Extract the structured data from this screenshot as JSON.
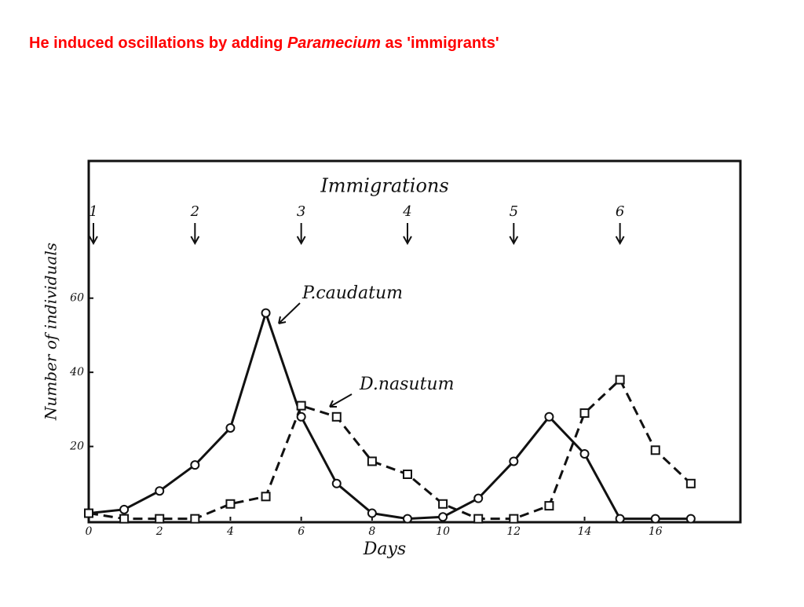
{
  "slide": {
    "title_parts": [
      "He induced oscillations by adding ",
      "Paramecium",
      " as 'immigrants'"
    ]
  },
  "chart_data": {
    "type": "line",
    "x_label": "Days",
    "y_label": "Number of individuals",
    "x": [
      0,
      1,
      2,
      3,
      4,
      5,
      6,
      7,
      8,
      9,
      10,
      11,
      12,
      13,
      14,
      15,
      16,
      17
    ],
    "series": [
      {
        "name": "P.caudatum",
        "color": "#111111",
        "style": "solid",
        "marker": "circle",
        "values": [
          2,
          3,
          8,
          15,
          25,
          56,
          28,
          10,
          2,
          0.5,
          1,
          6,
          16,
          28,
          18,
          0.5,
          0.5,
          0.5
        ]
      },
      {
        "name": "D.nasutum",
        "color": "#111111",
        "style": "dashed",
        "marker": "square",
        "values": [
          2,
          0.5,
          0.5,
          0.5,
          4.5,
          6.5,
          31,
          28,
          16,
          12.5,
          4.5,
          0.5,
          0.5,
          4,
          29,
          38,
          19,
          10
        ]
      }
    ],
    "immigrations": {
      "title": "Immigrations",
      "x": [
        0,
        3,
        6,
        9,
        12,
        15
      ],
      "labels": [
        "1",
        "2",
        "3",
        "4",
        "5",
        "6"
      ]
    },
    "xlim": [
      0,
      18.4
    ],
    "ylim": [
      0,
      97
    ],
    "xticks": [
      0,
      2,
      4,
      6,
      8,
      10,
      12,
      14,
      16
    ],
    "yticks": [
      20,
      40,
      60
    ]
  }
}
